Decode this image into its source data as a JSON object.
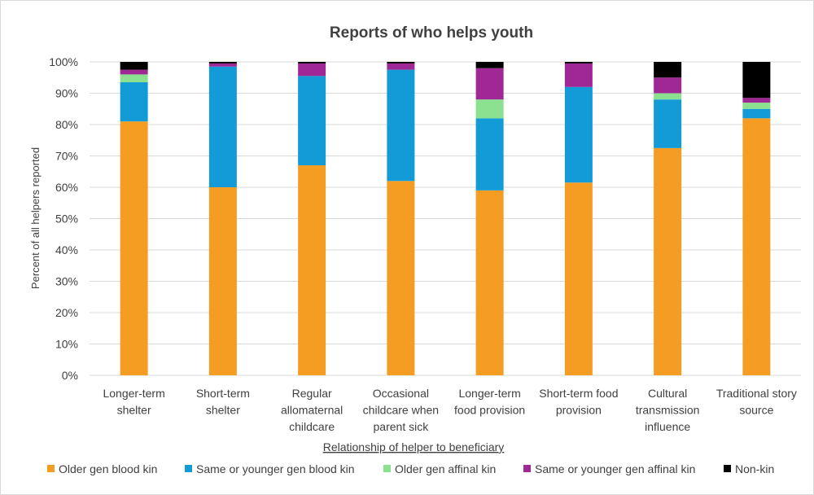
{
  "chart_data": {
    "type": "bar",
    "stacked": true,
    "title": "Reports of who helps youth",
    "xlabel": "Relationship of helper to beneficiary",
    "ylabel": "Percent of all helpers reported",
    "ylim": [
      0,
      100
    ],
    "yticks": [
      0,
      10,
      20,
      30,
      40,
      50,
      60,
      70,
      80,
      90,
      100
    ],
    "ytick_labels": [
      "0%",
      "10%",
      "20%",
      "30%",
      "40%",
      "50%",
      "60%",
      "70%",
      "80%",
      "90%",
      "100%"
    ],
    "grid": true,
    "legend_position": "bottom",
    "categories": [
      [
        "Longer-term",
        "shelter"
      ],
      [
        "Short-term",
        "shelter"
      ],
      [
        "Regular",
        "allomaternal",
        "childcare"
      ],
      [
        "Occasional",
        "childcare when",
        "parent sick"
      ],
      [
        "Longer-term",
        "food provision"
      ],
      [
        "Short-term food",
        "provision"
      ],
      [
        "Cultural",
        "transmission",
        "influence"
      ],
      [
        "Traditional story",
        "source"
      ]
    ],
    "series": [
      {
        "name": "Older gen blood kin",
        "color": "#f59d22",
        "values": [
          81,
          60,
          67,
          62,
          59,
          61.5,
          72.5,
          82
        ]
      },
      {
        "name": "Same or younger gen blood kin",
        "color": "#139bd8",
        "values": [
          12.5,
          38.5,
          28.5,
          35.5,
          23,
          30.5,
          15.5,
          3
        ]
      },
      {
        "name": "Older gen affinal kin",
        "color": "#8be18f",
        "values": [
          2.5,
          0,
          0,
          0,
          6,
          0,
          2,
          2
        ]
      },
      {
        "name": "Same or younger gen affinal kin",
        "color": "#a02896",
        "values": [
          1.5,
          1,
          4,
          2,
          10,
          7.5,
          5,
          1.5
        ]
      },
      {
        "name": "Non-kin",
        "color": "#000000",
        "values": [
          2.5,
          0.5,
          0.5,
          0.5,
          2,
          0.5,
          5,
          11.5
        ]
      }
    ]
  }
}
